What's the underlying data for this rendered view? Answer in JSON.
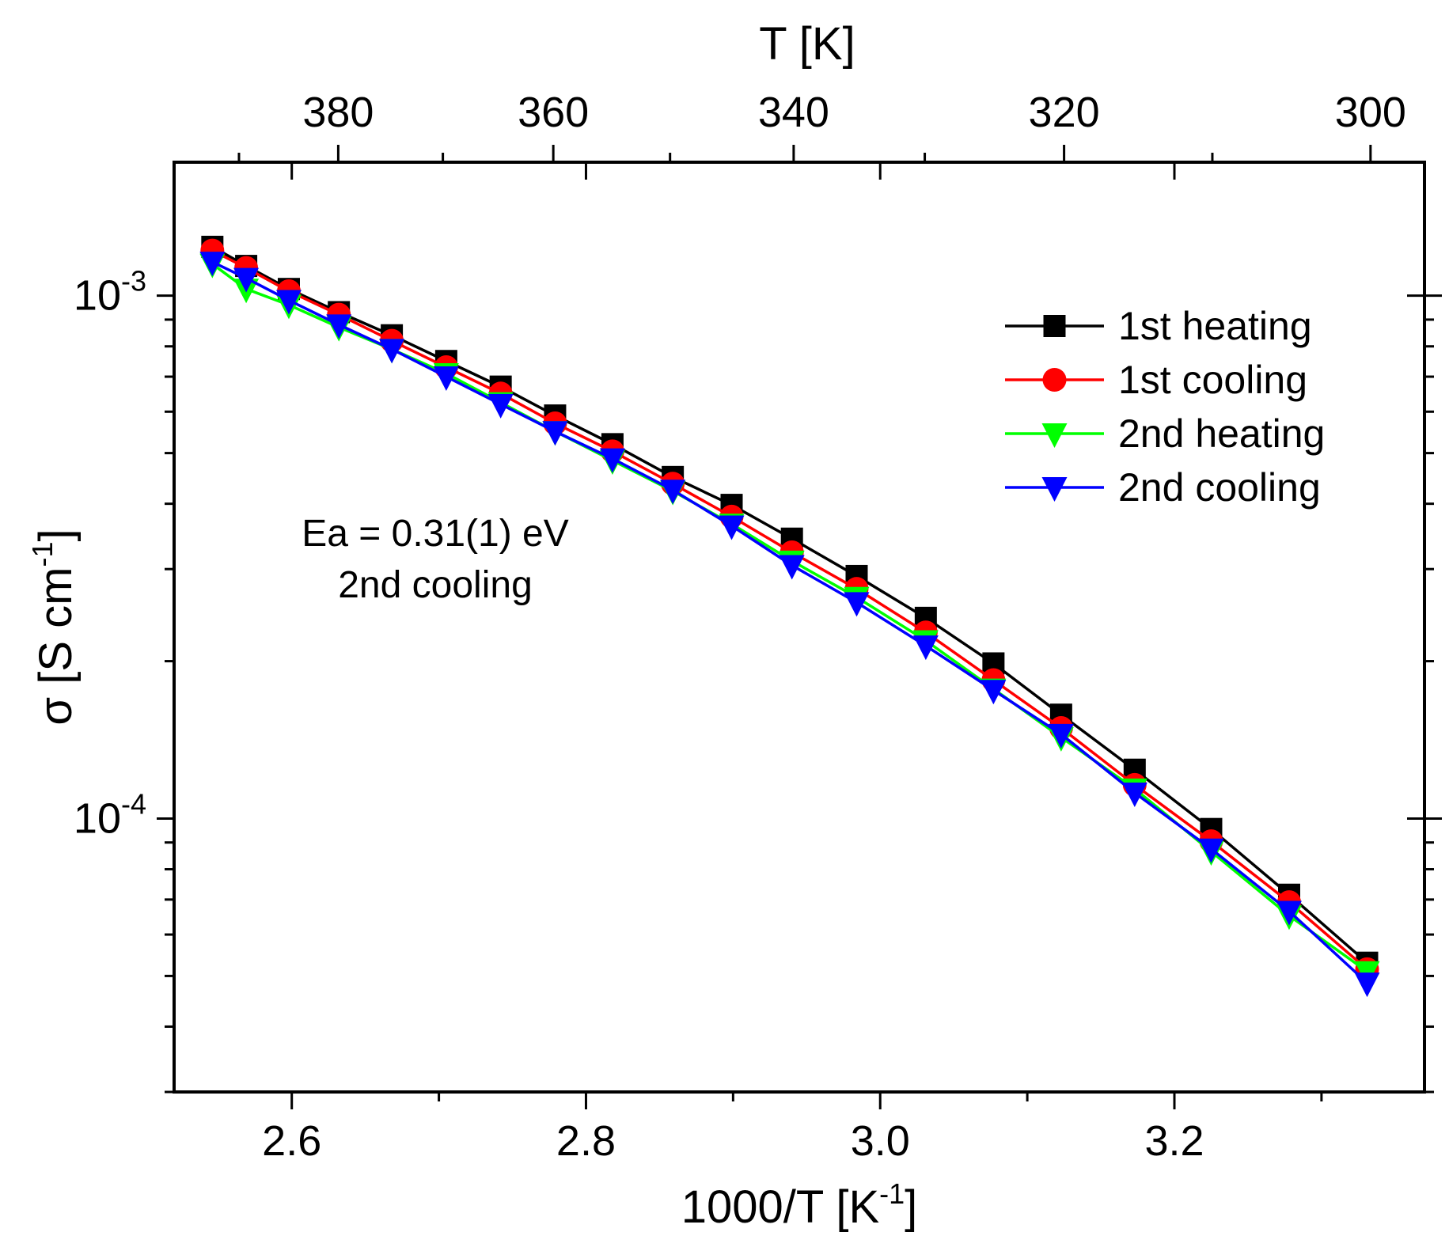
{
  "chart_data": {
    "type": "scatter",
    "x_axis": {
      "label": "1000/T [K",
      "label_sup": "-1",
      "label_close": "]",
      "range": [
        2.52,
        3.37
      ],
      "major_ticks": [
        2.6,
        2.8,
        3.0,
        3.2
      ],
      "major_tick_labels": [
        "2.6",
        "2.8",
        "3.0",
        "3.2"
      ],
      "minor_ticks": [
        2.7,
        2.9,
        3.1,
        3.3
      ]
    },
    "top_axis": {
      "label": "T [K]",
      "ticks_K": [
        380,
        360,
        340,
        320,
        300
      ],
      "tick_labels": [
        "380",
        "360",
        "340",
        "320",
        "300"
      ],
      "minor_ticks_K": [
        390,
        370,
        350,
        330,
        310
      ]
    },
    "y_axis": {
      "label": "σ [S cm",
      "label_sup": "-1",
      "label_close": "]",
      "scale": "log",
      "range": [
        3e-05,
        0.0018
      ],
      "major_ticks": [
        0.0001,
        0.001
      ],
      "major_tick_labels": [
        {
          "base": "10",
          "exp": "-4"
        },
        {
          "base": "10",
          "exp": "-3"
        }
      ]
    },
    "annotation": {
      "line1": "Ea = 0.31(1) eV",
      "line2": "2nd cooling"
    },
    "legend_position": "top-right",
    "series": [
      {
        "name": "1st heating",
        "color": "#000000",
        "marker": "square",
        "x": [
          2.546,
          2.569,
          2.598,
          2.632,
          2.668,
          2.705,
          2.742,
          2.779,
          2.818,
          2.859,
          2.899,
          2.94,
          2.984,
          3.031,
          3.077,
          3.123,
          3.173,
          3.225,
          3.278,
          3.331
        ],
        "y": [
          0.00124,
          0.00114,
          0.00103,
          0.00093,
          0.00084,
          0.00075,
          0.00067,
          0.00059,
          0.00052,
          0.00045,
          0.000398,
          0.000343,
          0.000291,
          0.000242,
          0.000198,
          0.000158,
          0.000124,
          9.55e-05,
          7.15e-05,
          5.3e-05
        ]
      },
      {
        "name": "1st cooling",
        "color": "#ff0000",
        "marker": "circle",
        "x": [
          2.546,
          2.569,
          2.598,
          2.632,
          2.668,
          2.705,
          2.742,
          2.779,
          2.818,
          2.859,
          2.899,
          2.94,
          2.984,
          3.031,
          3.077,
          3.123,
          3.173,
          3.225,
          3.278,
          3.331
        ],
        "y": [
          0.00122,
          0.00113,
          0.00102,
          0.00092,
          0.00082,
          0.00073,
          0.00065,
          0.00057,
          0.000504,
          0.000437,
          0.000378,
          0.000323,
          0.000275,
          0.000227,
          0.000184,
          0.000149,
          0.000116,
          9.05e-05,
          6.92e-05,
          5.15e-05
        ]
      },
      {
        "name": "2nd heating",
        "color": "#00ff00",
        "marker": "triangle-down",
        "x": [
          2.546,
          2.569,
          2.598,
          2.632,
          2.668,
          2.705,
          2.742,
          2.779,
          2.818,
          2.859,
          2.899,
          2.94,
          2.984,
          3.031,
          3.077,
          3.123,
          3.173,
          3.225,
          3.278,
          3.331
        ],
        "y": [
          0.00115,
          0.00103,
          0.00096,
          0.00087,
          0.00079,
          0.00071,
          0.000625,
          0.00055,
          0.000484,
          0.000423,
          0.000366,
          0.000311,
          0.000265,
          0.000219,
          0.000177,
          0.000143,
          0.000114,
          8.65e-05,
          6.52e-05,
          5.1e-05
        ]
      },
      {
        "name": "2nd cooling",
        "color": "#0000ff",
        "marker": "triangle-down",
        "x": [
          2.546,
          2.569,
          2.598,
          2.632,
          2.668,
          2.705,
          2.742,
          2.779,
          2.818,
          2.859,
          2.899,
          2.94,
          2.984,
          3.031,
          3.077,
          3.123,
          3.173,
          3.225,
          3.278,
          3.331
        ],
        "y": [
          0.00116,
          0.00108,
          0.00098,
          0.00088,
          0.00079,
          0.0007,
          0.00062,
          0.00055,
          0.000488,
          0.000425,
          0.000363,
          0.000305,
          0.000259,
          0.000214,
          0.000176,
          0.000145,
          0.000112,
          8.75e-05,
          6.65e-05,
          4.85e-05
        ]
      }
    ]
  }
}
